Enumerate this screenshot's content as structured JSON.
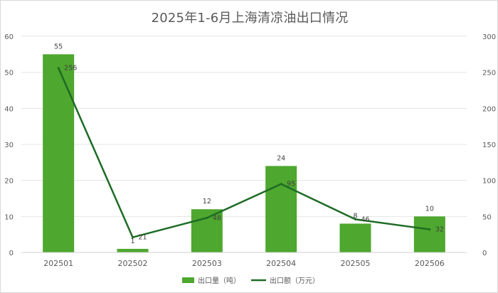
{
  "chart_data": {
    "type": "bar",
    "title": "2025年1-6月上海清凉油出口情况",
    "categories": [
      "202501",
      "202502",
      "202503",
      "202504",
      "202505",
      "202506"
    ],
    "series": [
      {
        "name": "出口量（吨）",
        "type": "bar",
        "axis": "left",
        "color": "#4ea72e",
        "values": [
          55,
          1,
          12,
          24,
          8,
          10
        ]
      },
      {
        "name": "出口额（万元）",
        "type": "line",
        "axis": "right",
        "color": "#1e6b25",
        "values": [
          256,
          21,
          48,
          95,
          46,
          32
        ]
      }
    ],
    "y_left": {
      "min": 0,
      "max": 60,
      "step": 10
    },
    "y_right": {
      "min": 0,
      "max": 300,
      "step": 50
    },
    "xlabel": "",
    "ylabel": "",
    "grid": true,
    "legend_position": "bottom"
  }
}
